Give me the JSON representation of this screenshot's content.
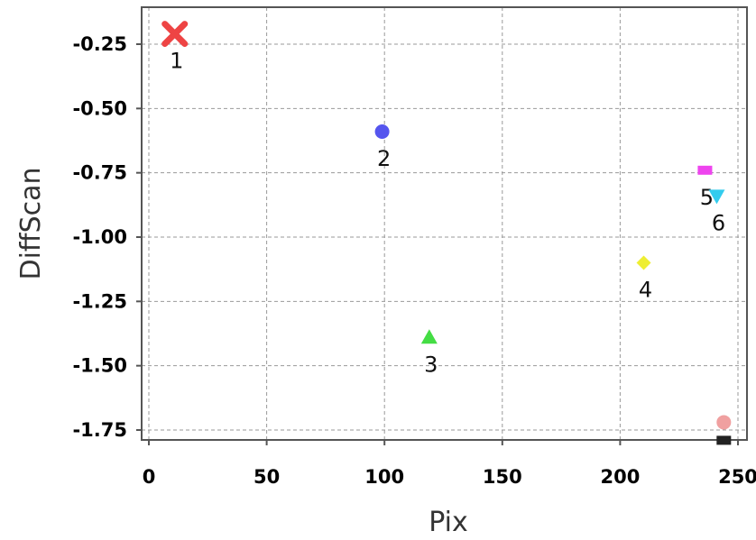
{
  "chart_data": {
    "type": "scatter",
    "xlabel": "Pix",
    "ylabel": "DiffScan",
    "xlim": [
      0,
      255
    ],
    "ylim": [
      -1.8,
      -0.15
    ],
    "x_ticks": [
      0,
      50,
      100,
      150,
      200,
      250
    ],
    "x_tick_labels": [
      "0",
      "50",
      "100",
      "150",
      "200",
      "250"
    ],
    "y_ticks": [
      -0.25,
      -0.5,
      -0.75,
      -1.0,
      -1.25,
      -1.5,
      -1.75
    ],
    "y_tick_labels": [
      "-0.25",
      "-0.50",
      "-0.75",
      "-1.00",
      "-1.25",
      "-1.50",
      "-1.75"
    ],
    "grid": true,
    "points": [
      {
        "label": "1",
        "x": 11,
        "y": -0.21,
        "marker": "x",
        "color": "#ee4444"
      },
      {
        "label": "2",
        "x": 99,
        "y": -0.59,
        "marker": "circle",
        "color": "#5555ee"
      },
      {
        "label": "3",
        "x": 119,
        "y": -1.39,
        "marker": "triangle-up",
        "color": "#44dd44"
      },
      {
        "label": "4",
        "x": 210,
        "y": -1.1,
        "marker": "diamond",
        "color": "#eeee33"
      },
      {
        "label": "5",
        "x": 236,
        "y": -0.74,
        "marker": "square",
        "color": "#ee44ee"
      },
      {
        "label": "6",
        "x": 241,
        "y": -0.84,
        "marker": "triangle-down",
        "color": "#33ccee"
      },
      {
        "label": "",
        "x": 244,
        "y": -1.72,
        "marker": "circle",
        "color": "#f0a0a0"
      },
      {
        "label": "",
        "x": 244,
        "y": -1.79,
        "marker": "square",
        "color": "#222222"
      }
    ]
  }
}
